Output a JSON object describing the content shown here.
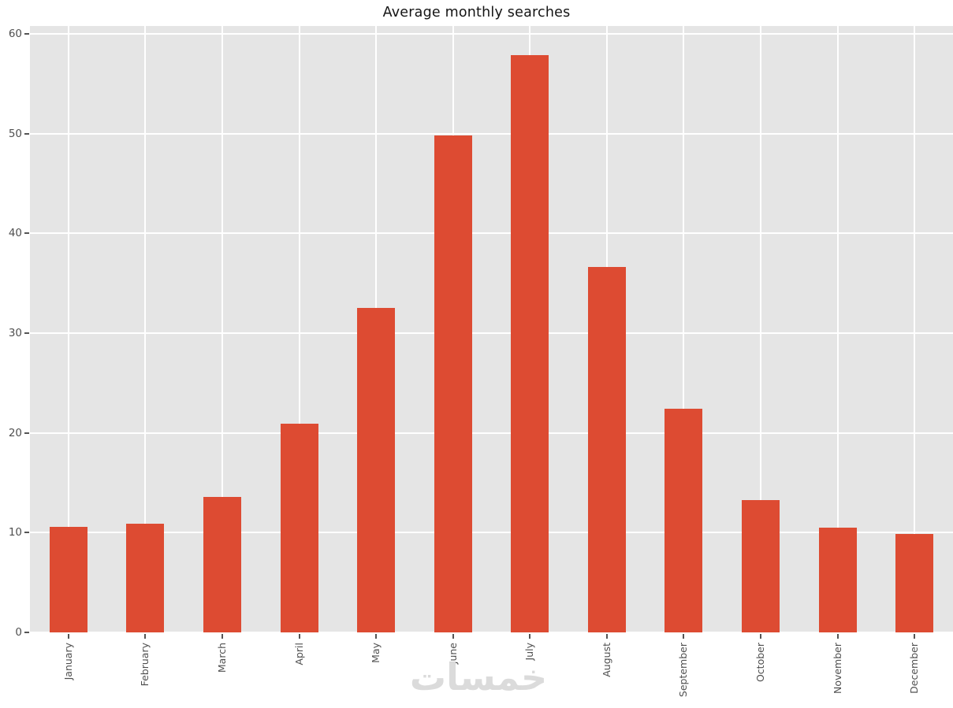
{
  "chart_data": {
    "type": "bar",
    "title": "Average monthly searches",
    "categories": [
      "January",
      "February",
      "March",
      "April",
      "May",
      "June",
      "July",
      "August",
      "September",
      "October",
      "November",
      "December"
    ],
    "values": [
      10.6,
      10.9,
      13.6,
      20.9,
      32.5,
      49.8,
      57.9,
      36.6,
      22.4,
      13.3,
      10.5,
      9.9
    ],
    "xlabel": "",
    "ylabel": "",
    "yticks": [
      0,
      10,
      20,
      30,
      40,
      50,
      60
    ],
    "ylim": [
      0,
      60.8
    ],
    "grid": true,
    "legend": false,
    "style": "ggplot",
    "colors": {
      "bar": "#dd4b32",
      "plot_background": "#e5e5e5",
      "figure_background": "#ffffff",
      "gridline": "#ffffff",
      "tick_label": "#4f4f4f",
      "title": "#141414",
      "watermark": "#dbdbdb"
    }
  },
  "watermark": {
    "text": "خمسات"
  }
}
